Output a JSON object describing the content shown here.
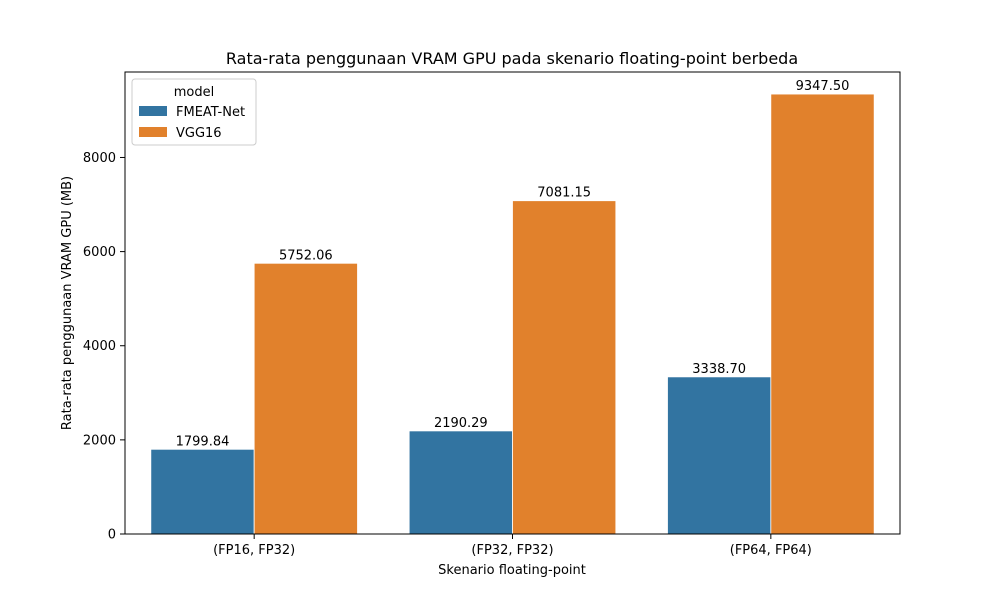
{
  "chart_data": {
    "type": "bar",
    "title": "Rata-rata penggunaan VRAM GPU pada skenario floating-point berbeda",
    "xlabel": "Skenario floating-point",
    "ylabel": "Rata-rata penggunaan VRAM GPU (MB)",
    "categories": [
      "(FP16, FP32)",
      "(FP32, FP32)",
      "(FP64, FP64)"
    ],
    "series": [
      {
        "name": "FMEAT-Net",
        "color": "#3274a1",
        "values": [
          1799.84,
          2190.29,
          3338.7
        ],
        "labels": [
          "1799.84",
          "2190.29",
          "3338.70"
        ]
      },
      {
        "name": "VGG16",
        "color": "#e1812c",
        "values": [
          5752.06,
          7081.15,
          9347.5
        ],
        "labels": [
          "5752.06",
          "7081.15",
          "9347.50"
        ]
      }
    ],
    "ylim": [
      0,
      9816
    ],
    "yticks": [
      0,
      2000,
      4000,
      6000,
      8000
    ],
    "ytick_labels": [
      "0",
      "2000",
      "4000",
      "6000",
      "8000"
    ],
    "grid": false,
    "legend": {
      "title": "model",
      "placement": "top-left"
    }
  }
}
